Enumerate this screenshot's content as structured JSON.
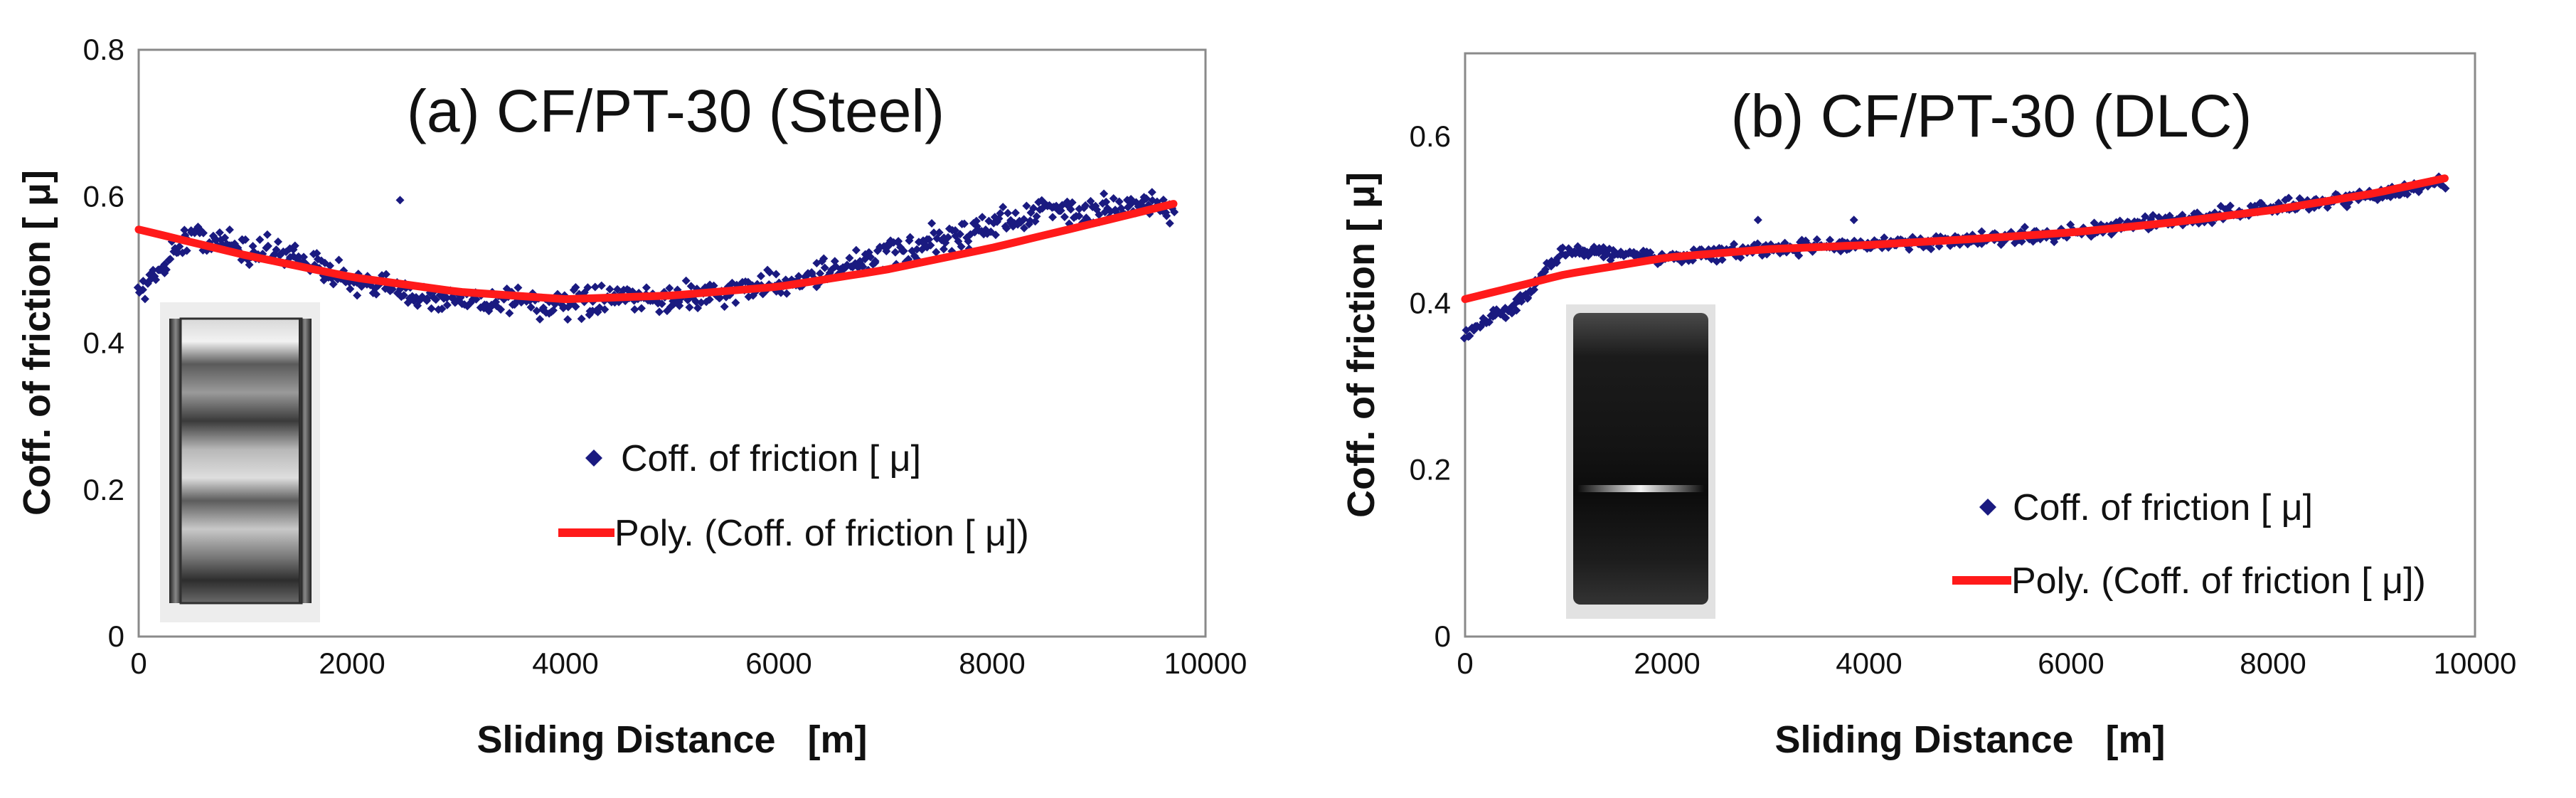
{
  "chart_data": [
    {
      "type": "scatter",
      "panel": "a",
      "title": "(a) CF/PT-30 (Steel)",
      "xlabel": "Sliding Distance   [m]",
      "ylabel": "Coff. of friction [ μ]",
      "xlim": [
        0,
        10000
      ],
      "ylim": [
        0,
        0.8
      ],
      "xticks": [
        "0",
        "2000",
        "4000",
        "6000",
        "8000",
        "10000"
      ],
      "yticks": [
        "0",
        "0.2",
        "0.4",
        "0.6",
        "0.8"
      ],
      "legend": [
        "Coff. of friction [ μ]",
        "Poly. (Coff. of friction [ μ])"
      ],
      "legend_position": "bottom-right",
      "inset_image": "steel-bearing-ring",
      "series": [
        {
          "name": "Coff. of friction [ μ]",
          "style": "scatter",
          "color": "#1a1a80",
          "x": [
            0,
            500,
            1000,
            1500,
            2000,
            2500,
            3000,
            3500,
            4000,
            4500,
            5000,
            5500,
            6000,
            6500,
            7000,
            7500,
            8000,
            8500,
            9000,
            9500,
            9700
          ],
          "y": [
            0.47,
            0.55,
            0.53,
            0.52,
            0.48,
            0.47,
            0.46,
            0.46,
            0.45,
            0.46,
            0.46,
            0.47,
            0.48,
            0.5,
            0.52,
            0.54,
            0.56,
            0.58,
            0.58,
            0.59,
            0.58
          ],
          "spread": 0.028,
          "outliers": [
            {
              "x": 2450,
              "y": 0.595
            }
          ]
        },
        {
          "name": "Poly. (Coff. of friction [ μ])",
          "style": "line",
          "color": "#ff1a1a",
          "x": [
            0,
            1000,
            2000,
            3000,
            4000,
            5000,
            6000,
            7000,
            8000,
            9000,
            9700
          ],
          "y": [
            0.555,
            0.52,
            0.49,
            0.47,
            0.46,
            0.465,
            0.477,
            0.5,
            0.53,
            0.565,
            0.59
          ]
        }
      ]
    },
    {
      "type": "scatter",
      "panel": "b",
      "title": "(b) CF/PT-30 (DLC)",
      "xlabel": "Sliding Distance   [m]",
      "ylabel": "Coff. of friction [ μ]",
      "xlim": [
        0,
        10000
      ],
      "ylim": [
        0,
        0.7
      ],
      "xticks": [
        "0",
        "2000",
        "4000",
        "6000",
        "8000",
        "10000"
      ],
      "yticks": [
        "0",
        "0.2",
        "0.4",
        "0.6"
      ],
      "legend": [
        "Coff. of friction [ μ]",
        "Poly. (Coff. of friction [ μ])"
      ],
      "legend_position": "bottom-right",
      "inset_image": "dlc-coated-ring",
      "series": [
        {
          "name": "Coff. of friction [ μ]",
          "style": "scatter",
          "color": "#1a1a80",
          "x": [
            0,
            200,
            400,
            600,
            800,
            1000,
            1500,
            2000,
            3000,
            4000,
            5000,
            6000,
            7000,
            8000,
            9000,
            9700
          ],
          "y": [
            0.36,
            0.38,
            0.39,
            0.41,
            0.44,
            0.465,
            0.458,
            0.455,
            0.465,
            0.47,
            0.475,
            0.485,
            0.5,
            0.515,
            0.53,
            0.545
          ],
          "spread": 0.012,
          "outliers": [
            {
              "x": 2900,
              "y": 0.5
            },
            {
              "x": 3850,
              "y": 0.5
            }
          ]
        },
        {
          "name": "Poly. (Coff. of friction [ μ])",
          "style": "line",
          "color": "#ff1a1a",
          "x": [
            0,
            1000,
            2000,
            3000,
            4000,
            5000,
            6000,
            7000,
            8000,
            9000,
            9700
          ],
          "y": [
            0.405,
            0.435,
            0.455,
            0.465,
            0.47,
            0.477,
            0.485,
            0.497,
            0.512,
            0.532,
            0.55
          ]
        }
      ]
    }
  ]
}
